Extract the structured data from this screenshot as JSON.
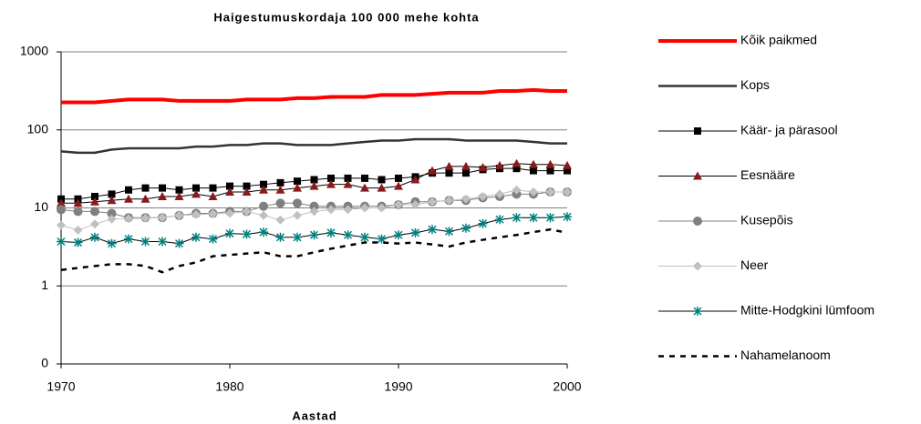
{
  "chart_data": {
    "type": "line",
    "title": "Haigestumuskordaja 100 000 mehe kohta",
    "xlabel": "Aastad",
    "x": [
      1970,
      1971,
      1972,
      1973,
      1974,
      1975,
      1976,
      1977,
      1978,
      1979,
      1980,
      1981,
      1982,
      1983,
      1984,
      1985,
      1986,
      1987,
      1988,
      1989,
      1990,
      1991,
      1992,
      1993,
      1994,
      1995,
      1996,
      1997,
      1998,
      1999,
      2000
    ],
    "xlim": [
      1970,
      2000
    ],
    "xticks": [
      1970,
      1980,
      1990,
      2000
    ],
    "ylim": [
      0.1,
      1000
    ],
    "yticks": [
      {
        "value": 0.1,
        "label": "0"
      },
      1,
      10,
      100,
      1000
    ],
    "log_scale_y": true,
    "grid": true,
    "legend": "right",
    "series": [
      {
        "name": "Kõik paikmed",
        "color": "#ff0000",
        "width": 4,
        "marker": "none",
        "marker_color": "#ff0000",
        "dash": false,
        "values": [
          225,
          225,
          225,
          235,
          245,
          245,
          245,
          235,
          235,
          235,
          235,
          245,
          245,
          245,
          255,
          255,
          265,
          265,
          265,
          280,
          280,
          280,
          290,
          300,
          300,
          300,
          315,
          315,
          325,
          315,
          315
        ]
      },
      {
        "name": "Kops",
        "color": "#333333",
        "width": 2.5,
        "marker": "none",
        "marker_color": "#333333",
        "dash": false,
        "values": [
          53,
          51,
          51,
          56,
          58,
          58,
          58,
          58,
          61,
          61,
          64,
          64,
          67,
          67,
          64,
          64,
          64,
          67,
          70,
          73,
          73,
          76,
          76,
          76,
          73,
          73,
          73,
          73,
          70,
          67,
          67
        ]
      },
      {
        "name": "Käär- ja pärasool",
        "color": "#000000",
        "width": 1,
        "marker": "square",
        "marker_color": "#000000",
        "dash": false,
        "values": [
          13,
          13,
          14,
          15,
          17,
          18,
          18,
          17,
          18,
          18,
          19,
          19,
          20,
          21,
          22,
          23,
          24,
          24,
          24,
          23,
          24,
          25,
          28,
          28,
          28,
          31,
          32,
          32,
          30,
          30,
          30
        ]
      },
      {
        "name": "Eesnääre",
        "color": "#000000",
        "width": 1,
        "marker": "triangle",
        "marker_color": "#8b1a1a",
        "dash": false,
        "values": [
          11.5,
          11.5,
          12,
          12.5,
          13,
          13,
          14,
          14,
          15,
          14,
          16,
          16,
          17,
          17,
          18,
          19,
          20,
          20,
          18,
          18,
          19,
          23,
          30,
          34,
          34,
          33,
          35,
          37,
          36,
          36,
          35
        ]
      },
      {
        "name": "Kusepõis",
        "color": "#808080",
        "width": 1,
        "marker": "circle",
        "marker_color": "#808080",
        "dash": false,
        "values": [
          9.5,
          9,
          9,
          8.5,
          7.5,
          7.5,
          7.5,
          8,
          8.5,
          8.5,
          9,
          9,
          10.5,
          11.5,
          11.5,
          10.5,
          10.5,
          10.5,
          10.5,
          10.5,
          11,
          12,
          12,
          12.5,
          12.5,
          13.5,
          14,
          15,
          15,
          16,
          16
        ]
      },
      {
        "name": "Neer",
        "color": "#c0c0c0",
        "width": 1,
        "marker": "diamond",
        "marker_color": "#c0c0c0",
        "dash": false,
        "values": [
          6,
          5.2,
          6.2,
          7.2,
          7.3,
          7.4,
          7.5,
          8,
          8.2,
          8.4,
          8.5,
          9,
          8,
          7,
          8,
          9,
          9.5,
          9.5,
          10,
          10,
          11,
          11,
          12,
          12.5,
          13,
          14,
          15,
          17,
          16,
          16,
          16
        ]
      },
      {
        "name": "Mitte-Hodgkini lümfoom",
        "color": "#000000",
        "width": 1,
        "marker": "asterisk",
        "marker_color": "#008080",
        "dash": false,
        "values": [
          3.7,
          3.6,
          4.2,
          3.5,
          4,
          3.7,
          3.7,
          3.5,
          4.2,
          4,
          4.7,
          4.6,
          4.9,
          4.2,
          4.2,
          4.5,
          4.8,
          4.5,
          4.2,
          4,
          4.5,
          4.8,
          5.3,
          5,
          5.5,
          6.3,
          7.1,
          7.5,
          7.5,
          7.5,
          7.7
        ]
      },
      {
        "name": "Nahamelanoom",
        "color": "#000000",
        "width": 2.5,
        "marker": "none",
        "marker_color": "#000000",
        "dash": true,
        "values": [
          1.6,
          1.7,
          1.8,
          1.9,
          1.9,
          1.8,
          1.5,
          1.8,
          2,
          2.4,
          2.5,
          2.6,
          2.7,
          2.4,
          2.4,
          2.7,
          3,
          3.3,
          3.6,
          3.6,
          3.5,
          3.6,
          3.4,
          3.2,
          3.6,
          3.9,
          4.2,
          4.5,
          4.9,
          5.3,
          4.8
        ]
      }
    ]
  }
}
